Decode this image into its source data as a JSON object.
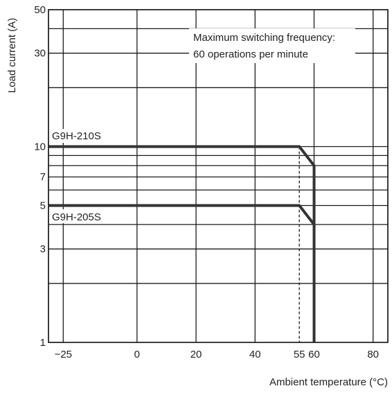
{
  "chart_data": {
    "type": "line",
    "xlabel": "Ambient temperature (°C)",
    "ylabel": "Load current (A)",
    "y_scale": "log",
    "xlim": [
      -30,
      85
    ],
    "ylim": [
      1,
      50
    ],
    "grid": true,
    "x_ticks": [
      {
        "value": -25,
        "label": "−25"
      },
      {
        "value": 0,
        "label": "0"
      },
      {
        "value": 20,
        "label": "20"
      },
      {
        "value": 40,
        "label": "40"
      },
      {
        "value": 55,
        "label": "55"
      },
      {
        "value": 60,
        "label": "60"
      },
      {
        "value": 80,
        "label": "80"
      }
    ],
    "x_gridlines": [
      -30,
      -25,
      0,
      20,
      40,
      60,
      80,
      85
    ],
    "y_ticks": [
      {
        "value": 1,
        "label": "1"
      },
      {
        "value": 3,
        "label": "3"
      },
      {
        "value": 5,
        "label": "5"
      },
      {
        "value": 7,
        "label": "7"
      },
      {
        "value": 10,
        "label": "10"
      },
      {
        "value": 30,
        "label": "30"
      },
      {
        "value": 50,
        "label": "50"
      }
    ],
    "y_gridlines": [
      1,
      2,
      3,
      4,
      5,
      6,
      7,
      8,
      9,
      10,
      20,
      30,
      40,
      50
    ],
    "reference_line": {
      "x": 55,
      "style": "dashed"
    },
    "series": [
      {
        "name": "G9H-210S",
        "label_position": "above",
        "points": [
          [
            -30,
            10
          ],
          [
            55,
            10
          ],
          [
            60,
            8
          ],
          [
            60,
            1
          ]
        ]
      },
      {
        "name": "G9H-205S",
        "label_position": "below",
        "points": [
          [
            -30,
            5
          ],
          [
            55,
            5
          ],
          [
            60,
            4
          ],
          [
            60,
            1
          ]
        ]
      }
    ],
    "annotation": {
      "lines": [
        "Maximum switching frequency:",
        "60 operations per minute"
      ]
    }
  }
}
